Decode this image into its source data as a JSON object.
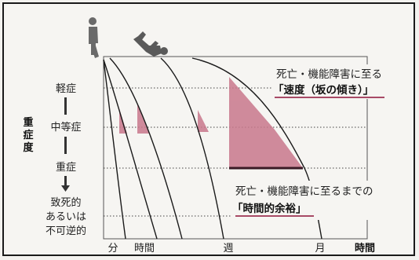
{
  "diagram": {
    "y_axis": {
      "title": "重症度",
      "levels": [
        "軽症",
        "中等症",
        "重症",
        "致死的",
        "あるいは",
        "不可逆的"
      ]
    },
    "x_axis": {
      "ticks": [
        "分",
        "時間",
        "週",
        "月"
      ],
      "title": "時間"
    },
    "annotations": {
      "speed_line1": "死亡・機能障害に至る",
      "speed_line2": "「速度（坂の傾き）」",
      "margin_line1": "死亡・機能障害に至るまでの",
      "margin_line2": "「時間的余裕」"
    },
    "colors": {
      "shade": "#c9788c",
      "curve": "#1a1a1a",
      "figure": "#6a6a6a"
    },
    "icons": [
      "standing-person-icon",
      "falling-person-icon"
    ]
  }
}
